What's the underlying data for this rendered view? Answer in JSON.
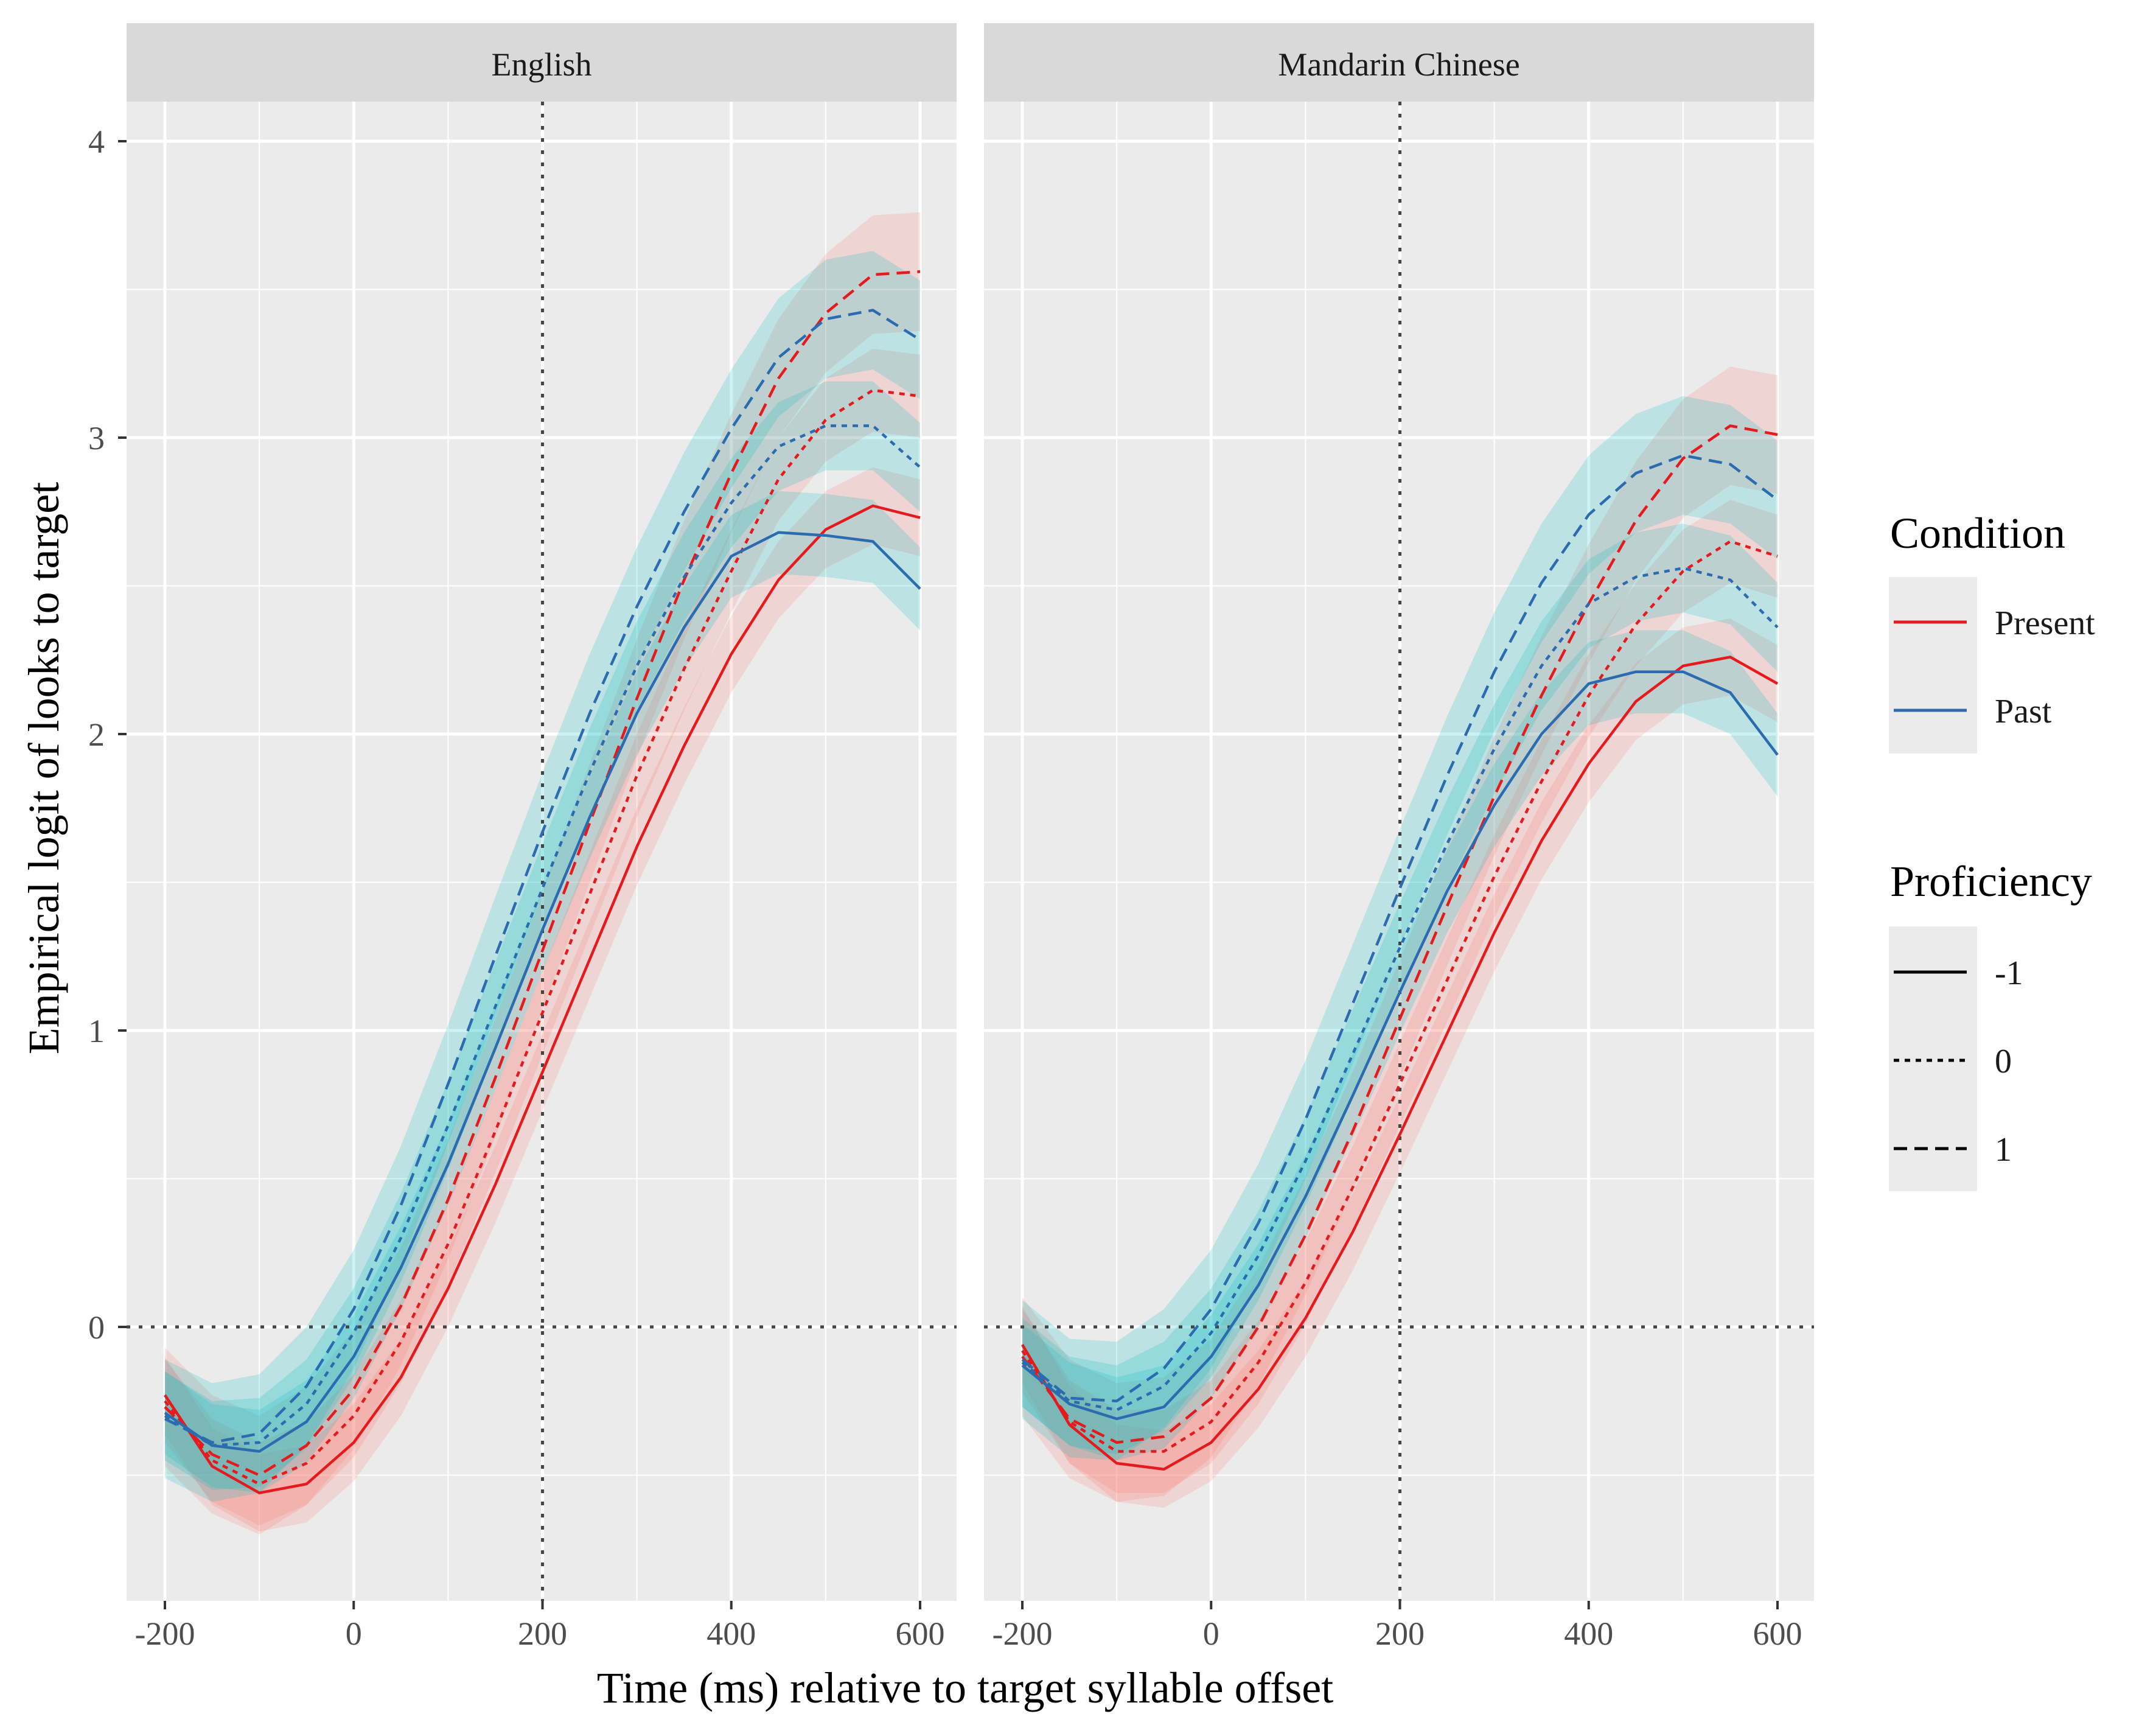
{
  "chart_data": {
    "type": "line",
    "facets": [
      "English",
      "Mandarin Chinese"
    ],
    "xlabel": "Time (ms) relative to target syllable offset",
    "ylabel": "Empirical logit of looks to target",
    "xlim": [
      -230,
      630
    ],
    "ylim": [
      -0.92,
      4.12
    ],
    "x_ticks": [
      -200,
      0,
      200,
      400,
      600
    ],
    "y_ticks": [
      0,
      1,
      2,
      3,
      4
    ],
    "reference_lines": {
      "vertical_x": 200,
      "horizontal_y": 0
    },
    "grid": true,
    "legend_position": "right",
    "legends": [
      {
        "title": "Condition",
        "kind": "color",
        "entries": [
          {
            "label": "Present",
            "color": "#e41a1c"
          },
          {
            "label": "Past",
            "color": "#2b6cb0"
          }
        ]
      },
      {
        "title": "Proficiency",
        "kind": "linetype",
        "entries": [
          {
            "label": "-1",
            "dash": "solid"
          },
          {
            "label": "0",
            "dash": "dotted"
          },
          {
            "label": "1",
            "dash": "dashed"
          }
        ]
      }
    ],
    "ribbon_colors": {
      "Present": "#f8766d",
      "Past": "#00bfc4"
    },
    "x": [
      -200,
      -150,
      -100,
      -50,
      0,
      50,
      100,
      150,
      200,
      250,
      300,
      350,
      400,
      450,
      500,
      550,
      600
    ],
    "panels": [
      {
        "facet": "English",
        "series": [
          {
            "condition": "Present",
            "proficiency": "-1",
            "values": [
              -0.23,
              -0.47,
              -0.56,
              -0.53,
              -0.39,
              -0.17,
              0.13,
              0.48,
              0.86,
              1.24,
              1.62,
              1.96,
              2.27,
              2.52,
              2.69,
              2.77,
              2.73
            ],
            "band": 0.13
          },
          {
            "condition": "Present",
            "proficiency": "0",
            "values": [
              -0.25,
              -0.45,
              -0.53,
              -0.46,
              -0.3,
              -0.05,
              0.28,
              0.66,
              1.06,
              1.46,
              1.86,
              2.22,
              2.55,
              2.86,
              3.06,
              3.16,
              3.14
            ],
            "band": 0.14
          },
          {
            "condition": "Present",
            "proficiency": "1",
            "values": [
              -0.27,
              -0.43,
              -0.5,
              -0.4,
              -0.21,
              0.07,
              0.43,
              0.84,
              1.27,
              1.7,
              2.12,
              2.52,
              2.88,
              3.2,
              3.42,
              3.55,
              3.56
            ],
            "band": 0.2
          },
          {
            "condition": "Past",
            "proficiency": "-1",
            "values": [
              -0.29,
              -0.4,
              -0.42,
              -0.32,
              -0.1,
              0.2,
              0.55,
              0.94,
              1.34,
              1.72,
              2.07,
              2.36,
              2.6,
              2.68,
              2.67,
              2.65,
              2.49
            ],
            "band": 0.14
          },
          {
            "condition": "Past",
            "proficiency": "0",
            "values": [
              -0.3,
              -0.4,
              -0.39,
              -0.26,
              -0.02,
              0.3,
              0.68,
              1.08,
              1.48,
              1.87,
              2.23,
              2.53,
              2.78,
              2.97,
              3.04,
              3.04,
              2.9
            ],
            "band": 0.15
          },
          {
            "condition": "Past",
            "proficiency": "1",
            "values": [
              -0.31,
              -0.39,
              -0.36,
              -0.2,
              0.06,
              0.41,
              0.82,
              1.25,
              1.67,
              2.07,
              2.43,
              2.75,
              3.03,
              3.27,
              3.4,
              3.43,
              3.33
            ],
            "band": 0.2
          }
        ]
      },
      {
        "facet": "Mandarin Chinese",
        "series": [
          {
            "condition": "Present",
            "proficiency": "-1",
            "values": [
              -0.06,
              -0.33,
              -0.46,
              -0.48,
              -0.39,
              -0.21,
              0.03,
              0.32,
              0.65,
              0.99,
              1.33,
              1.64,
              1.9,
              2.11,
              2.23,
              2.26,
              2.17
            ],
            "band": 0.13
          },
          {
            "condition": "Present",
            "proficiency": "0",
            "values": [
              -0.08,
              -0.32,
              -0.42,
              -0.42,
              -0.32,
              -0.12,
              0.15,
              0.47,
              0.82,
              1.17,
              1.52,
              1.84,
              2.13,
              2.37,
              2.55,
              2.65,
              2.6
            ],
            "band": 0.14
          },
          {
            "condition": "Present",
            "proficiency": "1",
            "values": [
              -0.1,
              -0.31,
              -0.39,
              -0.37,
              -0.24,
              0.0,
              0.31,
              0.66,
              1.04,
              1.42,
              1.79,
              2.13,
              2.44,
              2.72,
              2.93,
              3.04,
              3.01
            ],
            "band": 0.2
          },
          {
            "condition": "Past",
            "proficiency": "-1",
            "values": [
              -0.13,
              -0.26,
              -0.31,
              -0.27,
              -0.1,
              0.14,
              0.44,
              0.78,
              1.13,
              1.47,
              1.76,
              2.0,
              2.17,
              2.21,
              2.21,
              2.14,
              1.93
            ],
            "band": 0.14
          },
          {
            "condition": "Past",
            "proficiency": "0",
            "values": [
              -0.12,
              -0.25,
              -0.28,
              -0.2,
              -0.02,
              0.24,
              0.56,
              0.92,
              1.28,
              1.63,
              1.95,
              2.23,
              2.44,
              2.53,
              2.56,
              2.52,
              2.36
            ],
            "band": 0.15
          },
          {
            "condition": "Past",
            "proficiency": "1",
            "values": [
              -0.11,
              -0.24,
              -0.25,
              -0.14,
              0.06,
              0.35,
              0.7,
              1.09,
              1.48,
              1.86,
              2.21,
              2.51,
              2.74,
              2.88,
              2.94,
              2.91,
              2.79
            ],
            "band": 0.2
          }
        ]
      }
    ]
  }
}
